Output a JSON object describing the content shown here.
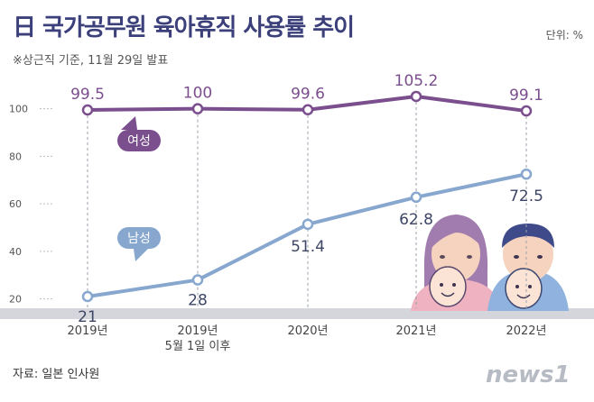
{
  "title": "日 국가공무원 육아휴직 사용률 추이",
  "subtitle": "※상근직 기준, 11월 29일 발표",
  "unit": "단위: %",
  "source": "자료: 일본 인사원",
  "logo_text": "news1",
  "colors": {
    "female": "#7b4e8e",
    "male": "#87a7cf",
    "title": "#3b3f7a",
    "grid": "#9aa0aa"
  },
  "chart_data": {
    "type": "line",
    "categories": [
      "2019년",
      "2019년\n5월 1일 이후",
      "2020년",
      "2021년",
      "2022년"
    ],
    "y_ticks": [
      20,
      40,
      60,
      80,
      100
    ],
    "ylim": [
      0,
      115
    ],
    "grid": false,
    "series": [
      {
        "name": "여성",
        "values": [
          99.5,
          100,
          99.6,
          105.2,
          99.1
        ],
        "labels": [
          "99.5",
          "100",
          "99.6",
          "105.2",
          "99.1"
        ]
      },
      {
        "name": "남성",
        "values": [
          21,
          28,
          51.4,
          62.8,
          72.5
        ],
        "labels": [
          "21",
          "28",
          "51.4",
          "62.8",
          "72.5"
        ]
      }
    ]
  }
}
